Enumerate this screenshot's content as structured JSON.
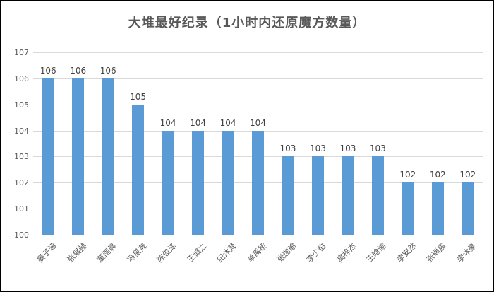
{
  "chart_data": {
    "type": "bar",
    "title": "大堆最好纪录（1小时内还原魔方数量）",
    "categories": [
      "晏子涵",
      "张展赫",
      "董雨晨",
      "冯星尧",
      "陈俊泽",
      "王诚之",
      "纪沐梵",
      "单禹桥",
      "张珈瑜",
      "李少伯",
      "高梓杰",
      "王晗谕",
      "李安然",
      "张瑀宸",
      "李沐豪"
    ],
    "values": [
      106,
      106,
      106,
      105,
      104,
      104,
      104,
      104,
      103,
      103,
      103,
      103,
      102,
      102,
      102
    ],
    "xlabel": "",
    "ylabel": "",
    "ylim": [
      100,
      107
    ],
    "ytick_step": 1,
    "grid": true,
    "legend": false,
    "bar_color": "#5b9bd5",
    "gridline_color": "#d9d9d9",
    "title_color": "#595959",
    "tick_label_color": "#595959",
    "value_label_color": "#404040"
  }
}
